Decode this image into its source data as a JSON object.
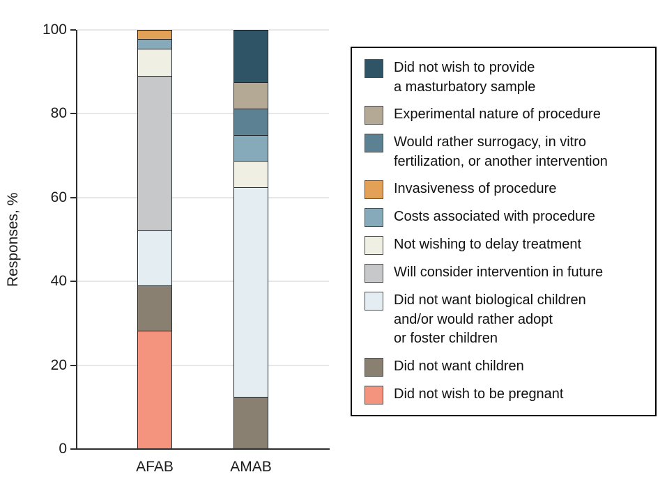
{
  "chart_data": {
    "type": "stacked-bar",
    "title": "",
    "xlabel": "",
    "ylabel": "Responses, %",
    "ylim": [
      0,
      100
    ],
    "yticks": [
      0,
      20,
      40,
      60,
      80,
      100
    ],
    "grid": "horizontal",
    "legend_position": "right",
    "categories": [
      "AFAB",
      "AMAB"
    ],
    "series": [
      {
        "key": "masturbatory-sample",
        "name": "Did not wish to provide\na masturbatory sample",
        "color": "#2E5465",
        "values": [
          0,
          12.5
        ]
      },
      {
        "key": "experimental-nature",
        "name": "Experimental nature of procedure",
        "color": "#B4A994",
        "values": [
          0,
          6.25
        ]
      },
      {
        "key": "surrogacy-ivf",
        "name": "Would rather surrogacy, in vitro\nfertilization, or another intervention",
        "color": "#5C8192",
        "values": [
          0,
          6.25
        ]
      },
      {
        "key": "invasiveness",
        "name": "Invasiveness of procedure",
        "color": "#E2A156",
        "values": [
          2.2,
          0
        ]
      },
      {
        "key": "costs",
        "name": "Costs associated with procedure",
        "color": "#87AABB",
        "values": [
          2.2,
          6.25
        ]
      },
      {
        "key": "delay-treatment",
        "name": "Not wishing to delay treatment",
        "color": "#F0EFE3",
        "values": [
          6.5,
          6.25
        ]
      },
      {
        "key": "consider-future",
        "name": "Will consider intervention in future",
        "color": "#C6C8CA",
        "values": [
          37.0,
          0
        ]
      },
      {
        "key": "no-biological-children",
        "name": "Did not want biological children\nand/or would rather adopt\nor foster children",
        "color": "#E4EDF2",
        "values": [
          13.0,
          50.0
        ]
      },
      {
        "key": "no-children",
        "name": "Did not want children",
        "color": "#8A8071",
        "values": [
          10.9,
          12.5
        ]
      },
      {
        "key": "not-pregnant",
        "name": "Did not wish to be pregnant",
        "color": "#F4947E",
        "values": [
          28.2,
          0
        ]
      }
    ]
  }
}
